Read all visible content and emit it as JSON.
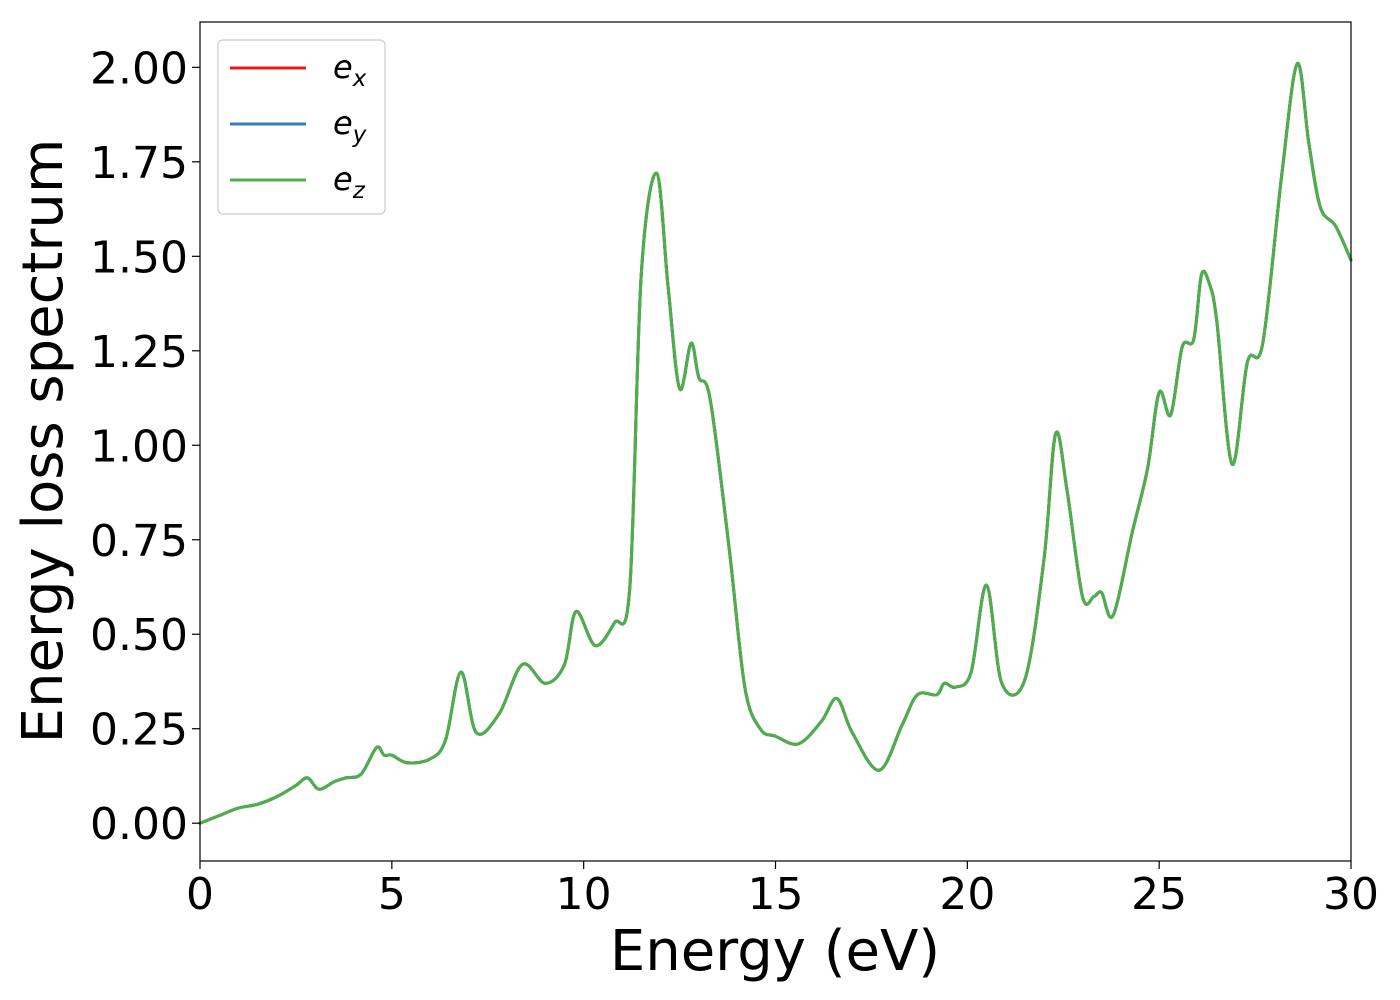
{
  "chart_data": {
    "type": "line",
    "xlabel": "Energy (eV)",
    "ylabel": "Energy loss spectrum",
    "xlim": [
      0,
      30
    ],
    "ylim": [
      -0.1,
      2.12
    ],
    "grid": false,
    "legend_position": "top-left",
    "x_ticks": [
      "0",
      "5",
      "10",
      "15",
      "20",
      "25",
      "30"
    ],
    "y_ticks": [
      "0.00",
      "0.25",
      "0.50",
      "0.75",
      "1.00",
      "1.25",
      "1.50",
      "1.75",
      "2.00"
    ],
    "series": [
      {
        "name": "e_x",
        "legend_base": "e",
        "legend_sub": "x",
        "color": "#e41a1c",
        "x": [
          0,
          0.5,
          1,
          1.5,
          2,
          2.5,
          2.8,
          3.1,
          3.5,
          3.8,
          4.2,
          4.6,
          4.8,
          5,
          5.4,
          6,
          6.4,
          6.8,
          7.2,
          7.8,
          8.4,
          9,
          9.5,
          9.8,
          10.3,
          10.8,
          11.2,
          11.5,
          11.9,
          12.2,
          12.5,
          12.8,
          13,
          13.3,
          13.8,
          14.2,
          14.6,
          15,
          15.6,
          16.2,
          16.6,
          17,
          17.7,
          18.3,
          18.7,
          19.2,
          19.4,
          19.7,
          20.1,
          20.5,
          20.9,
          21.5,
          22,
          22.3,
          22.6,
          23,
          23.3,
          23.5,
          23.8,
          24.3,
          24.7,
          25,
          25.3,
          25.6,
          25.9,
          26.1,
          26.3,
          26.5,
          26.9,
          27.3,
          27.7,
          28.2,
          28.6,
          28.9,
          29.2,
          29.6,
          30
        ],
        "values": [
          0,
          0.02,
          0.04,
          0.05,
          0.07,
          0.1,
          0.12,
          0.09,
          0.11,
          0.12,
          0.13,
          0.2,
          0.18,
          0.18,
          0.16,
          0.17,
          0.22,
          0.4,
          0.24,
          0.29,
          0.42,
          0.37,
          0.42,
          0.56,
          0.47,
          0.53,
          0.62,
          1.45,
          1.72,
          1.42,
          1.15,
          1.27,
          1.18,
          1.12,
          0.72,
          0.36,
          0.25,
          0.23,
          0.21,
          0.27,
          0.33,
          0.24,
          0.14,
          0.26,
          0.34,
          0.34,
          0.37,
          0.36,
          0.4,
          0.63,
          0.37,
          0.38,
          0.7,
          1.03,
          0.88,
          0.6,
          0.6,
          0.61,
          0.55,
          0.77,
          0.94,
          1.14,
          1.08,
          1.26,
          1.28,
          1.45,
          1.43,
          1.33,
          0.95,
          1.22,
          1.27,
          1.72,
          2.01,
          1.8,
          1.63,
          1.58,
          1.49
        ]
      },
      {
        "name": "e_y",
        "legend_base": "e",
        "legend_sub": "y",
        "color": "#377eb8",
        "x": [
          0,
          0.5,
          1,
          1.5,
          2,
          2.5,
          2.8,
          3.1,
          3.5,
          3.8,
          4.2,
          4.6,
          4.8,
          5,
          5.4,
          6,
          6.4,
          6.8,
          7.2,
          7.8,
          8.4,
          9,
          9.5,
          9.8,
          10.3,
          10.8,
          11.2,
          11.5,
          11.9,
          12.2,
          12.5,
          12.8,
          13,
          13.3,
          13.8,
          14.2,
          14.6,
          15,
          15.6,
          16.2,
          16.6,
          17,
          17.7,
          18.3,
          18.7,
          19.2,
          19.4,
          19.7,
          20.1,
          20.5,
          20.9,
          21.5,
          22,
          22.3,
          22.6,
          23,
          23.3,
          23.5,
          23.8,
          24.3,
          24.7,
          25,
          25.3,
          25.6,
          25.9,
          26.1,
          26.3,
          26.5,
          26.9,
          27.3,
          27.7,
          28.2,
          28.6,
          28.9,
          29.2,
          29.6,
          30
        ],
        "values": [
          0,
          0.02,
          0.04,
          0.05,
          0.07,
          0.1,
          0.12,
          0.09,
          0.11,
          0.12,
          0.13,
          0.2,
          0.18,
          0.18,
          0.16,
          0.17,
          0.22,
          0.4,
          0.24,
          0.29,
          0.42,
          0.37,
          0.42,
          0.56,
          0.47,
          0.53,
          0.62,
          1.45,
          1.72,
          1.42,
          1.15,
          1.27,
          1.18,
          1.12,
          0.72,
          0.36,
          0.25,
          0.23,
          0.21,
          0.27,
          0.33,
          0.24,
          0.14,
          0.26,
          0.34,
          0.34,
          0.37,
          0.36,
          0.4,
          0.63,
          0.37,
          0.38,
          0.7,
          1.03,
          0.88,
          0.6,
          0.6,
          0.61,
          0.55,
          0.77,
          0.94,
          1.14,
          1.08,
          1.26,
          1.28,
          1.45,
          1.43,
          1.33,
          0.95,
          1.22,
          1.27,
          1.72,
          2.01,
          1.8,
          1.63,
          1.58,
          1.49
        ]
      },
      {
        "name": "e_z",
        "legend_base": "e",
        "legend_sub": "z",
        "color": "#4daf4a",
        "x": [
          0,
          0.5,
          1,
          1.5,
          2,
          2.5,
          2.8,
          3.1,
          3.5,
          3.8,
          4.2,
          4.6,
          4.8,
          5,
          5.4,
          6,
          6.4,
          6.8,
          7.2,
          7.8,
          8.4,
          9,
          9.5,
          9.8,
          10.3,
          10.8,
          11.2,
          11.5,
          11.9,
          12.2,
          12.5,
          12.8,
          13,
          13.3,
          13.8,
          14.2,
          14.6,
          15,
          15.6,
          16.2,
          16.6,
          17,
          17.7,
          18.3,
          18.7,
          19.2,
          19.4,
          19.7,
          20.1,
          20.5,
          20.9,
          21.5,
          22,
          22.3,
          22.6,
          23,
          23.3,
          23.5,
          23.8,
          24.3,
          24.7,
          25,
          25.3,
          25.6,
          25.9,
          26.1,
          26.3,
          26.5,
          26.9,
          27.3,
          27.7,
          28.2,
          28.6,
          28.9,
          29.2,
          29.6,
          30
        ],
        "values": [
          0,
          0.02,
          0.04,
          0.05,
          0.07,
          0.1,
          0.12,
          0.09,
          0.11,
          0.12,
          0.13,
          0.2,
          0.18,
          0.18,
          0.16,
          0.17,
          0.22,
          0.4,
          0.24,
          0.29,
          0.42,
          0.37,
          0.42,
          0.56,
          0.47,
          0.53,
          0.62,
          1.45,
          1.72,
          1.42,
          1.15,
          1.27,
          1.18,
          1.12,
          0.72,
          0.36,
          0.25,
          0.23,
          0.21,
          0.27,
          0.33,
          0.24,
          0.14,
          0.26,
          0.34,
          0.34,
          0.37,
          0.36,
          0.4,
          0.63,
          0.37,
          0.38,
          0.7,
          1.03,
          0.88,
          0.6,
          0.6,
          0.61,
          0.55,
          0.77,
          0.94,
          1.14,
          1.08,
          1.26,
          1.28,
          1.45,
          1.43,
          1.33,
          0.95,
          1.22,
          1.27,
          1.72,
          2.01,
          1.8,
          1.63,
          1.58,
          1.49
        ]
      }
    ]
  }
}
